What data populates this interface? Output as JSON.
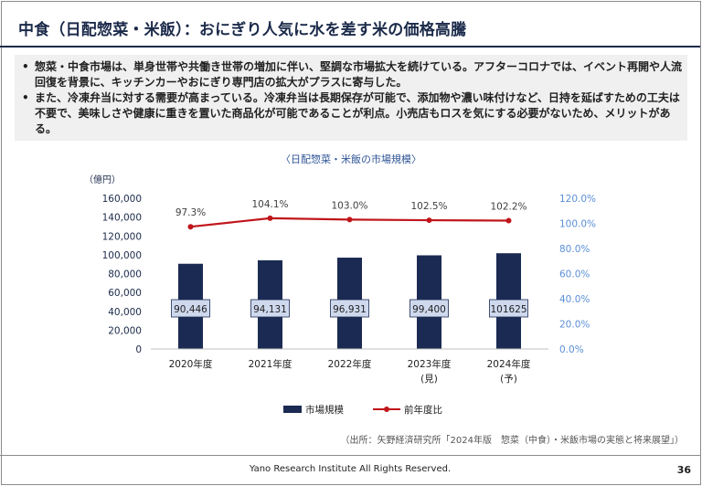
{
  "slide": {
    "title": "中食（日配惣菜・米飯）：おにぎり人気に水を差す米の価格高騰",
    "bullets": [
      "惣菜・中食市場は、単身世帯や共働き世帯の増加に伴い、堅調な市場拡大を続けている。アフターコロナでは、イベント再開や人流回復を背景に、キッチンカーやおにぎり専門店の拡大がプラスに寄与した。",
      "また、冷凍弁当に対する需要が高まっている。冷凍弁当は長期保存が可能で、添加物や濃い味付けなど、日持を延ばすための工夫は不要で、美味しさや健康に重きを置いた商品化が可能であることが利点。小売店もロスを気にする必要がないため、メリットがある。"
    ],
    "bullet_mark": "•",
    "source": "（出所：矢野経済研究所「2024年版　惣菜（中食）・米飯市場の実態と将来展望」）",
    "footer": "Yano Research Institute All Rights Reserved.",
    "page_number": "36"
  },
  "chart_data": {
    "type": "bar",
    "title": "〈日配惣菜・米飯の市場規模〉",
    "y_unit_label": "（億円）",
    "categories": [
      "2020年度",
      "2021年度",
      "2022年度",
      "2023年度",
      "2024年度"
    ],
    "category_notes": [
      "",
      "",
      "",
      "(見)",
      "(予)"
    ],
    "series": [
      {
        "name": "市場規模",
        "type": "bar",
        "axis": "left",
        "color": "#1b2a52",
        "values": [
          90446,
          94131,
          96931,
          99400,
          101625
        ],
        "labels": [
          "90,446",
          "94,131",
          "96,931",
          "99,400",
          "101625"
        ]
      },
      {
        "name": "前年度比",
        "type": "line",
        "axis": "right",
        "color": "#c0161b",
        "values": [
          97.3,
          104.1,
          103.0,
          102.5,
          102.2
        ],
        "labels": [
          "97.3%",
          "104.1%",
          "103.0%",
          "102.5%",
          "102.2%"
        ]
      }
    ],
    "y_left": {
      "min": 0,
      "max": 160000,
      "step": 20000,
      "ticks": [
        "0",
        "20,000",
        "40,000",
        "60,000",
        "80,000",
        "100,000",
        "120,000",
        "140,000",
        "160,000"
      ]
    },
    "y_right": {
      "min": 0,
      "max": 120,
      "step": 20,
      "ticks": [
        "0.0%",
        "20.0%",
        "40.0%",
        "60.0%",
        "80.0%",
        "100.0%",
        "120.0%"
      ]
    },
    "legend_position": "bottom",
    "grid": false,
    "colors": {
      "tick_left": "#1b2a4a",
      "tick_right": "#5b8fd6",
      "title": "#2f5597",
      "label_box_bg": "#cfd9ee"
    }
  }
}
